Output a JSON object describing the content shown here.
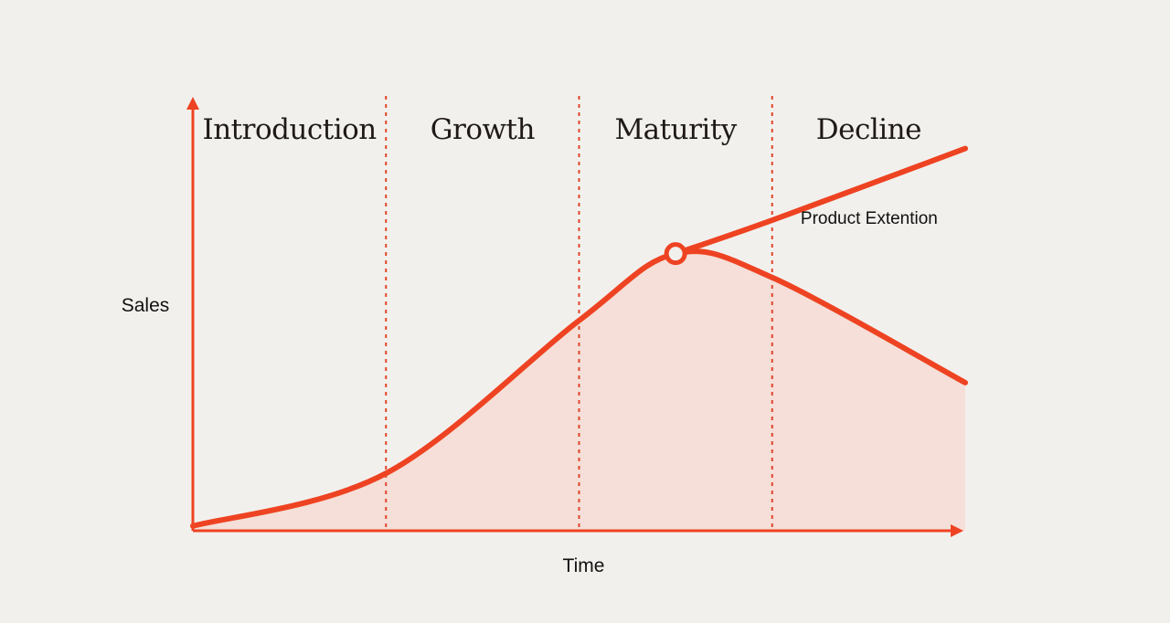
{
  "chart_data": {
    "type": "line",
    "title": "",
    "xlabel": "Time",
    "ylabel": "Sales",
    "xlim": [
      0,
      4
    ],
    "ylim": [
      0,
      1
    ],
    "grid": false,
    "stages": [
      {
        "name": "Introduction",
        "start": 0,
        "end": 1
      },
      {
        "name": "Growth",
        "start": 1,
        "end": 2
      },
      {
        "name": "Maturity",
        "start": 2,
        "end": 3
      },
      {
        "name": "Decline",
        "start": 3,
        "end": 4
      }
    ],
    "series": [
      {
        "name": "Sales",
        "filled": true,
        "points": [
          [
            0,
            0.01
          ],
          [
            1,
            0.12
          ],
          [
            2,
            0.44
          ],
          [
            2.5,
            0.58
          ],
          [
            3,
            0.53
          ],
          [
            4,
            0.31
          ]
        ]
      },
      {
        "name": "Product Extention",
        "filled": false,
        "points": [
          [
            2.5,
            0.58
          ],
          [
            3,
            0.65
          ],
          [
            4,
            0.8
          ]
        ]
      }
    ],
    "annotations": [
      {
        "text": "Product Extention",
        "x": 3.28,
        "y": 0.66
      }
    ],
    "marker": {
      "x": 2.5,
      "y": 0.58
    },
    "colors": {
      "line": "#ee4322",
      "fill": "#f6d9d0",
      "divider": "#e0452a",
      "background": "#f2f0ed"
    }
  }
}
